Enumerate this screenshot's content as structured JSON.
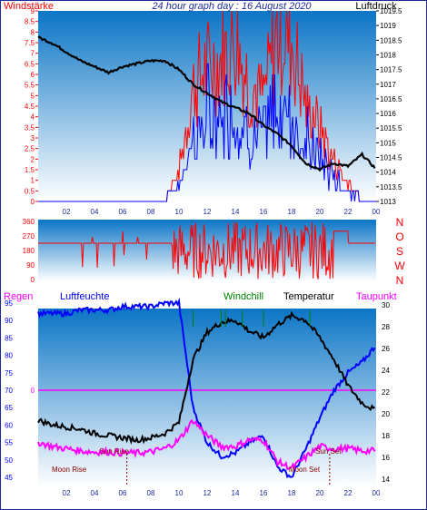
{
  "top_panel": {
    "title": "24 hour graph day : 16 August 2020",
    "left_label": "Windstärke",
    "right_label": "Luftdruck",
    "wind_ticks": [
      "0",
      "0.5",
      "1",
      "1.5",
      "2",
      "2.5",
      "3",
      "3.5",
      "4",
      "4.5",
      "5",
      "5.5",
      "6",
      "6.5",
      "7",
      "7.5",
      "8",
      "8.5",
      "9"
    ],
    "pressure_ticks": [
      "1013",
      "1013.5",
      "1014",
      "1014.5",
      "1015",
      "1015.5",
      "1016",
      "1016.5",
      "1017",
      "1017.5",
      "1018",
      "1018.5",
      "1019",
      "1019.5"
    ],
    "x_ticks": [
      "02",
      "04",
      "06",
      "08",
      "10",
      "12",
      "14",
      "16",
      "18",
      "20",
      "22",
      "00"
    ]
  },
  "direction_panel": {
    "degree_ticks": [
      "0",
      "90",
      "180",
      "270",
      "360"
    ],
    "compass": [
      "N",
      "W",
      "S",
      "O",
      "N"
    ]
  },
  "bottom_panel": {
    "labels": {
      "rain": "Regen",
      "humidity": "Luftfeuchte",
      "windchill": "Windchill",
      "temperature": "Temperatur",
      "dewpoint": "Taupunkt"
    },
    "humidity_ticks": [
      "45",
      "50",
      "55",
      "60",
      "65",
      "70",
      "75",
      "80",
      "85",
      "90",
      "95"
    ],
    "rain_tick": "0",
    "temp_ticks": [
      "14",
      "16",
      "18",
      "20",
      "22",
      "24",
      "26",
      "28",
      "30"
    ],
    "x_ticks": [
      "02",
      "04",
      "06",
      "08",
      "10",
      "12",
      "14",
      "16",
      "18",
      "20",
      "22",
      "00"
    ],
    "annotations": {
      "sun_rise": "Sun Rise",
      "sun_set": "Sun Set",
      "moon_rise": "Moon Rise",
      "moon_set": "Moon Set"
    }
  },
  "colors": {
    "frame": "#1e2a99",
    "panel_top": "#0b75c6",
    "panel_bottom": "#ffffff",
    "wind_gust": "#ff0000",
    "wind_avg": "#0000ff",
    "pressure": "#000000",
    "humidity": "#0000ff",
    "temperature": "#000000",
    "dewpoint": "#ff00ff",
    "windchill": "#008000",
    "direction": "#ff0000"
  },
  "chart_data": [
    {
      "type": "line",
      "name": "wind-pressure",
      "x": [
        0,
        1,
        2,
        3,
        4,
        5,
        6,
        7,
        8,
        9,
        10,
        11,
        12,
        13,
        14,
        15,
        16,
        17,
        18,
        19,
        20,
        21,
        22,
        23,
        24
      ],
      "series": [
        {
          "name": "Luftdruck",
          "axis": "right",
          "values": [
            1018.6,
            1018.4,
            1018.1,
            1017.8,
            1017.6,
            1017.4,
            1017.6,
            1017.7,
            1017.8,
            1017.8,
            1017.5,
            1017.0,
            1016.7,
            1016.4,
            1016.2,
            1016.0,
            1015.6,
            1015.3,
            1014.9,
            1014.3,
            1014.1,
            1014.3,
            1014.2,
            1014.6,
            1014.1
          ]
        },
        {
          "name": "Windstärke",
          "axis": "left",
          "values": [
            0,
            0,
            0,
            0,
            0,
            0,
            0,
            0,
            0,
            0,
            1.5,
            6,
            7,
            7.5,
            8.5,
            6,
            5.5,
            9,
            8.5,
            5,
            4,
            2,
            1,
            0,
            0
          ]
        }
      ],
      "ylim_left": [
        0,
        9
      ],
      "ylim_right": [
        1013,
        1019.5
      ]
    },
    {
      "type": "scatter",
      "name": "wind-direction",
      "x": [
        0,
        1,
        2,
        3,
        4,
        5,
        6,
        7,
        8,
        9,
        10,
        11,
        12,
        13,
        14,
        15,
        16,
        17,
        18,
        19,
        20,
        21,
        22,
        23,
        24
      ],
      "series": [
        {
          "name": "direction",
          "values": [
            225,
            225,
            225,
            225,
            225,
            225,
            225,
            225,
            225,
            225,
            270,
            220,
            250,
            230,
            260,
            240,
            250,
            230,
            260,
            240,
            270,
            300,
            225,
            225,
            225
          ]
        }
      ],
      "ylim": [
        0,
        360
      ]
    },
    {
      "type": "line",
      "name": "humidity-temperature",
      "x": [
        0,
        1,
        2,
        3,
        4,
        5,
        6,
        7,
        8,
        9,
        10,
        11,
        12,
        13,
        14,
        15,
        16,
        17,
        18,
        19,
        20,
        21,
        22,
        23,
        24
      ],
      "series": [
        {
          "name": "Luftfeuchte",
          "axis": "left",
          "values": [
            92,
            92,
            92,
            93,
            93,
            93,
            94,
            94,
            94,
            95,
            95,
            65,
            55,
            51,
            52,
            55,
            57,
            48,
            45,
            53,
            62,
            70,
            75,
            78,
            83
          ]
        },
        {
          "name": "Temperatur",
          "axis": "right",
          "values": [
            19.4,
            19.0,
            18.8,
            18.6,
            18.2,
            18.0,
            17.8,
            17.6,
            17.8,
            18.2,
            19.2,
            25.0,
            27.5,
            28.4,
            28.6,
            27.6,
            27.0,
            28.2,
            29.0,
            28.6,
            27.0,
            25.0,
            22.6,
            21.0,
            20.3
          ]
        },
        {
          "name": "Taupunkt",
          "axis": "right",
          "values": [
            17.4,
            17.0,
            16.8,
            16.6,
            16.5,
            16.5,
            16.4,
            16.4,
            16.5,
            16.8,
            17.6,
            19.4,
            18.0,
            17.0,
            17.0,
            17.6,
            17.6,
            15.6,
            15.0,
            16.0,
            17.0,
            16.8,
            16.8,
            16.6,
            16.6
          ]
        }
      ],
      "ylim_left": [
        45,
        95
      ],
      "ylim_right": [
        14,
        30
      ]
    }
  ]
}
